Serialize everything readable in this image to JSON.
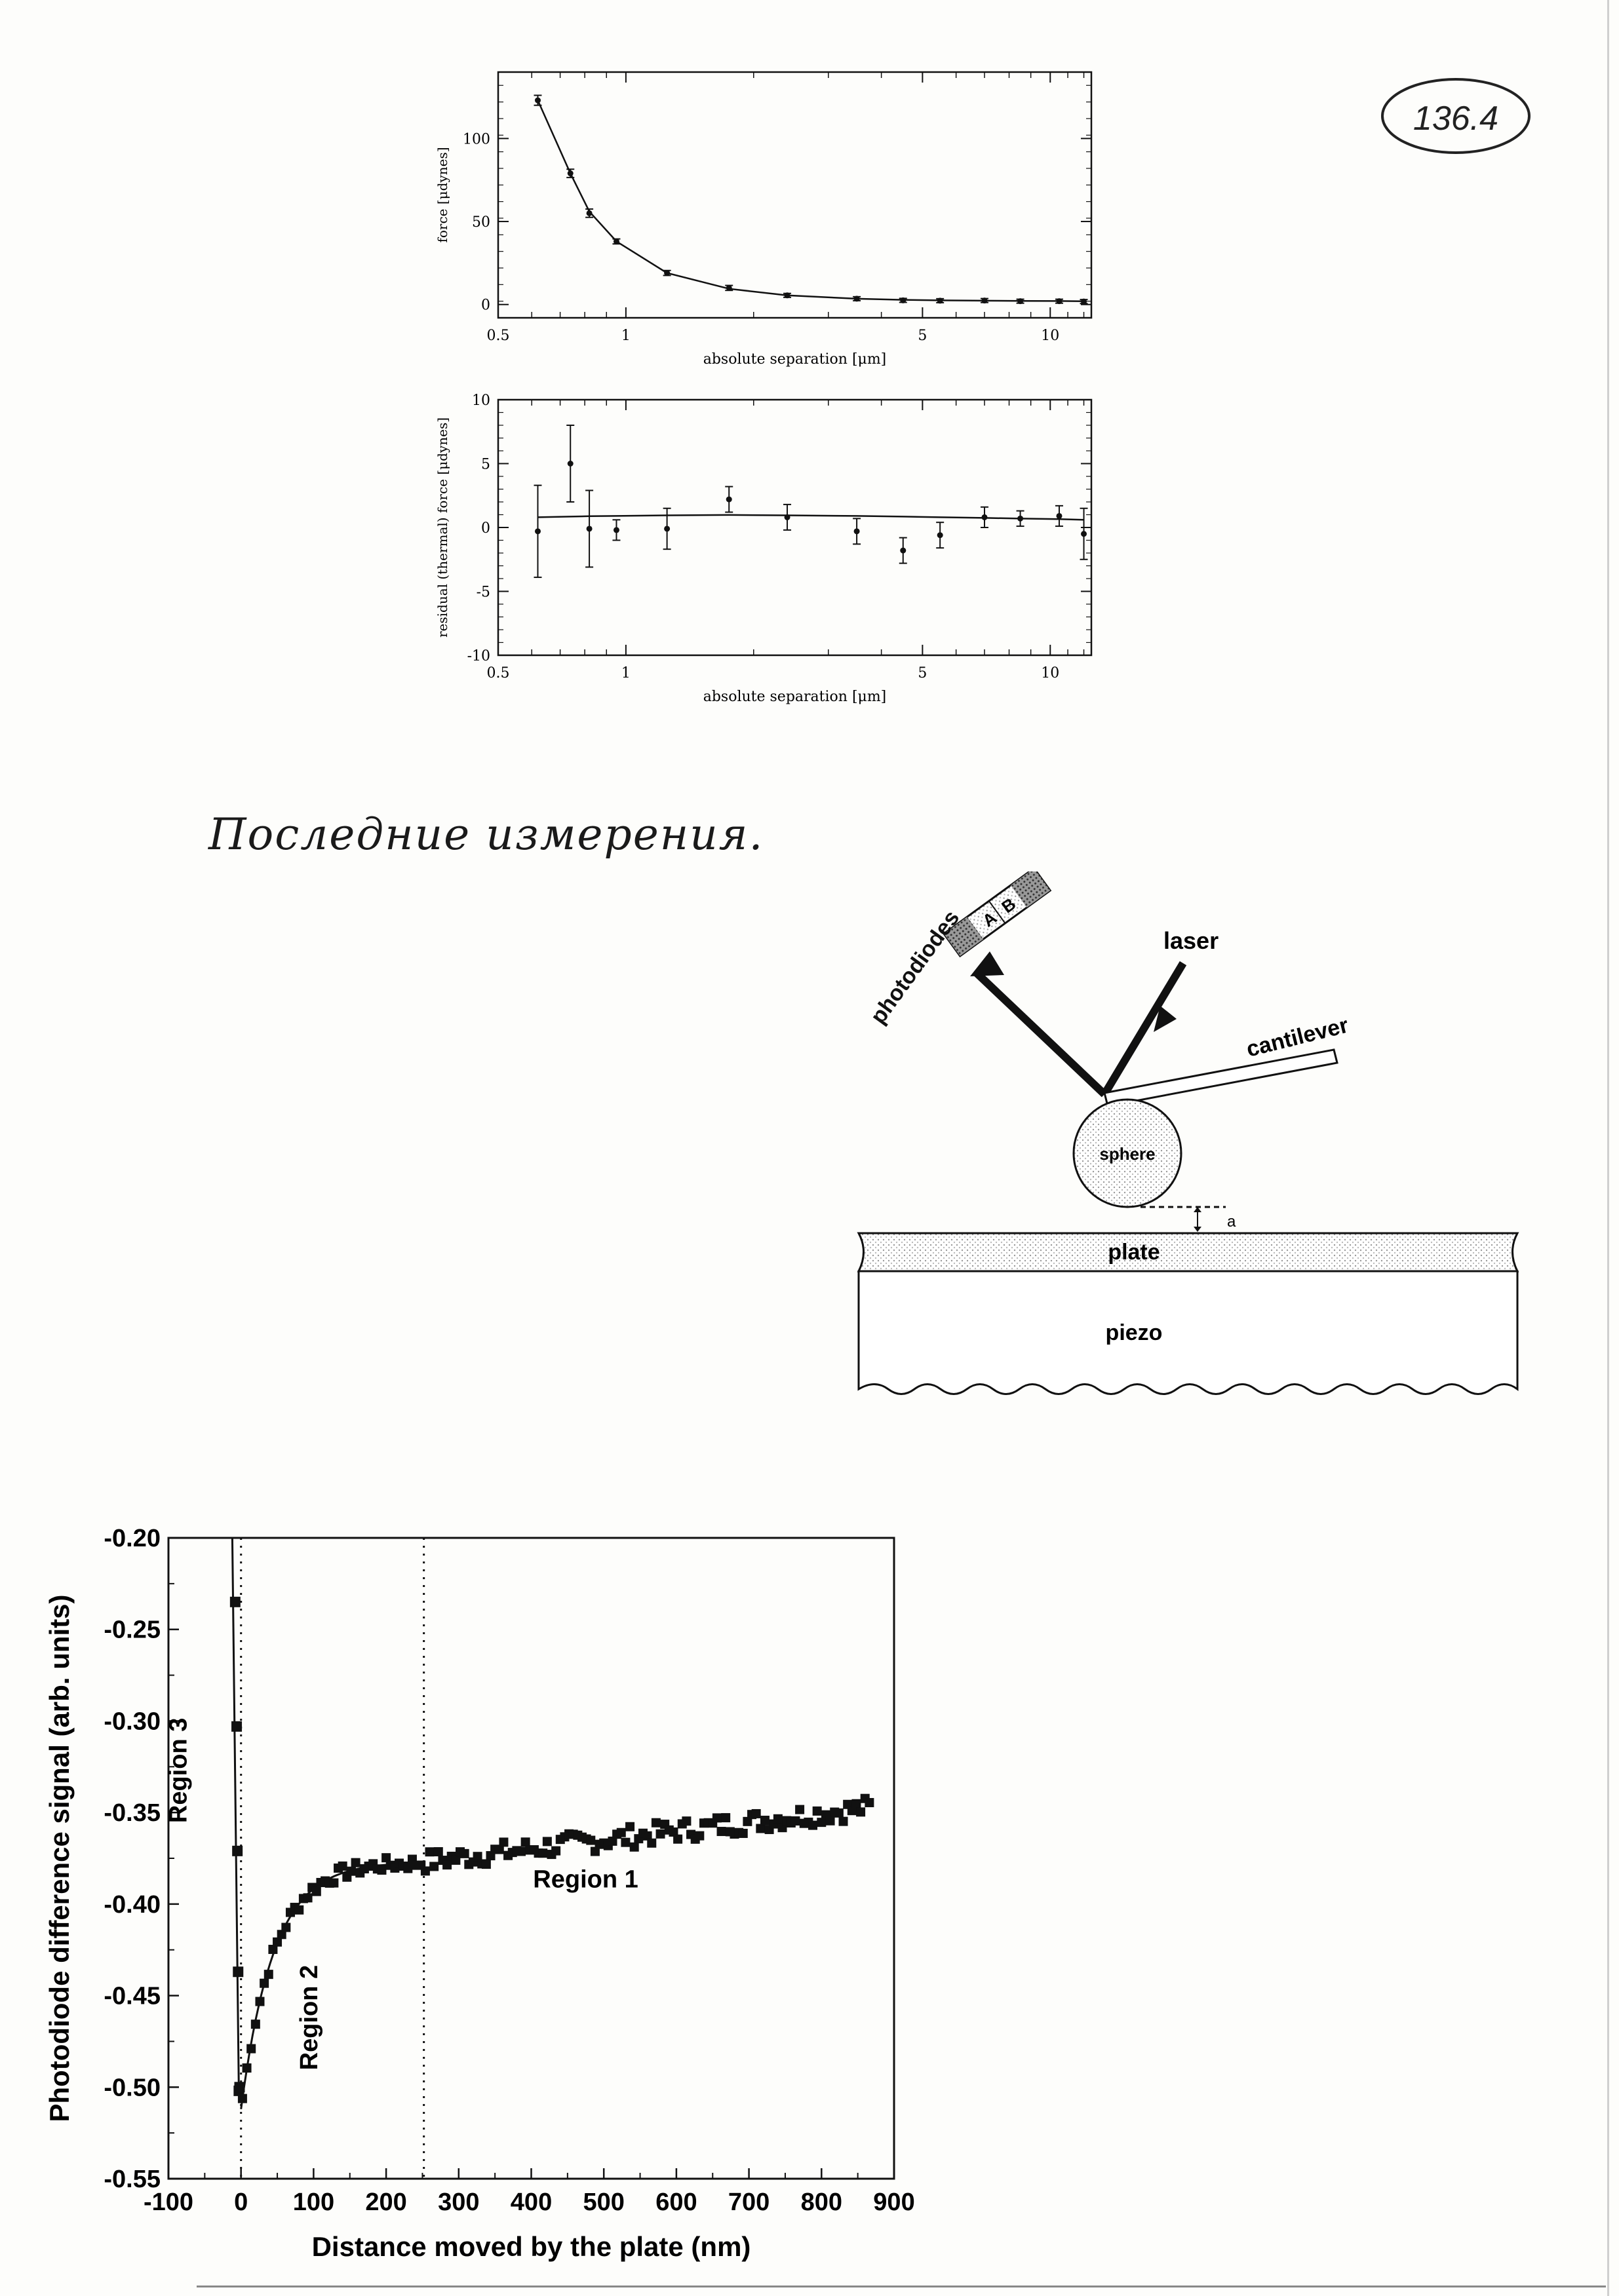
{
  "page_number": "136.4",
  "handwritten_caption": "Последние измерения.",
  "chart_data": [
    {
      "type": "line",
      "title": "",
      "xlabel": "absolute separation [μm]",
      "ylabel": "force [μdynes]",
      "xscale": "log",
      "xlim": [
        0.5,
        12.5
      ],
      "ylim": [
        -8,
        140
      ],
      "x_ticks": [
        0.5,
        1,
        5,
        10
      ],
      "y_ticks": [
        0,
        50,
        100
      ],
      "grid": false,
      "x": [
        0.62,
        0.74,
        0.82,
        0.95,
        1.25,
        1.75,
        2.4,
        3.5,
        4.5,
        5.5,
        7.0,
        8.5,
        10.5,
        12.0
      ],
      "values": [
        123,
        79,
        55,
        38,
        19,
        10,
        5.5,
        3.5,
        2.5,
        2.3,
        2.4,
        2.0,
        2.0,
        1.8
      ],
      "errors": [
        3,
        2.5,
        2.5,
        1.5,
        1.5,
        1.5,
        1.2,
        1.2,
        1.2,
        1.2,
        1.2,
        1.2,
        1.2,
        1.2
      ],
      "fit": [
        123,
        79,
        56,
        38,
        19,
        9.5,
        5.5,
        3.5,
        2.8,
        2.5,
        2.3,
        2.2,
        2.1,
        2.0
      ]
    },
    {
      "type": "scatter",
      "title": "",
      "xlabel": "absolute separation [μm]",
      "ylabel": "residual (thermal) force [μdynes]",
      "xscale": "log",
      "xlim": [
        0.5,
        12.5
      ],
      "ylim": [
        -10,
        10
      ],
      "x_ticks": [
        0.5,
        1,
        5,
        10
      ],
      "y_ticks": [
        -10,
        -5,
        0,
        5,
        10
      ],
      "grid": false,
      "x": [
        0.62,
        0.74,
        0.82,
        0.95,
        1.25,
        1.75,
        2.4,
        3.5,
        4.5,
        5.5,
        7.0,
        8.5,
        10.5,
        12.0
      ],
      "values": [
        -0.3,
        5.0,
        -0.1,
        -0.2,
        -0.1,
        2.2,
        0.8,
        -0.3,
        -1.8,
        -0.6,
        0.8,
        0.7,
        0.9,
        -0.5
      ],
      "errors": [
        3.6,
        3.0,
        3.0,
        0.8,
        1.6,
        1.0,
        1.0,
        1.0,
        1.0,
        1.0,
        0.8,
        0.6,
        0.8,
        2.0
      ],
      "fit": [
        0.8,
        0.85,
        0.88,
        0.9,
        0.95,
        0.98,
        0.95,
        0.9,
        0.85,
        0.8,
        0.75,
        0.7,
        0.65,
        0.6
      ]
    },
    {
      "type": "scatter",
      "title": "",
      "xlabel": "Distance moved by the plate (nm)",
      "ylabel": "Photodiode difference signal (arb. units)",
      "xlim": [
        -100,
        900
      ],
      "ylim": [
        -0.55,
        -0.2
      ],
      "x_ticks": [
        -100,
        0,
        100,
        200,
        300,
        400,
        500,
        600,
        700,
        800,
        900
      ],
      "y_ticks": [
        -0.2,
        -0.25,
        -0.3,
        -0.35,
        -0.4,
        -0.45,
        -0.5,
        -0.55
      ],
      "x_tick_labels": [
        "-100",
        "0",
        "100",
        "200",
        "300",
        "400",
        "500",
        "600",
        "700",
        "800",
        "900"
      ],
      "y_tick_labels": [
        "-0.20",
        "-0.25",
        "-0.30",
        "-0.35",
        "-0.40",
        "-0.45",
        "-0.50",
        "-0.55"
      ],
      "grid": false,
      "annotations": [
        "Region 3",
        "Region 2",
        "Region 1"
      ],
      "region_boundaries_nm": [
        0,
        252
      ],
      "region3_points": {
        "x": [
          -8,
          -6,
          -5,
          -4,
          -3,
          -2
        ],
        "y": [
          -0.235,
          -0.303,
          -0.371,
          -0.437,
          -0.502,
          -0.5
        ]
      },
      "region2_curve": {
        "x_start": 0,
        "x_end": 252,
        "y_min": -0.512,
        "y_end": -0.377
      },
      "region1_line": {
        "x_start": 252,
        "x_end": 870,
        "y_start": -0.377,
        "y_end": -0.347
      },
      "points_every_nm": 6
    }
  ],
  "diagram": {
    "labels": {
      "laser": "laser",
      "photodiodes": "photodiodes",
      "cantilever": "cantilever",
      "sphere": "sphere",
      "plate": "plate",
      "piezo": "piezo",
      "a": "a",
      "A": "A",
      "B": "B"
    }
  }
}
